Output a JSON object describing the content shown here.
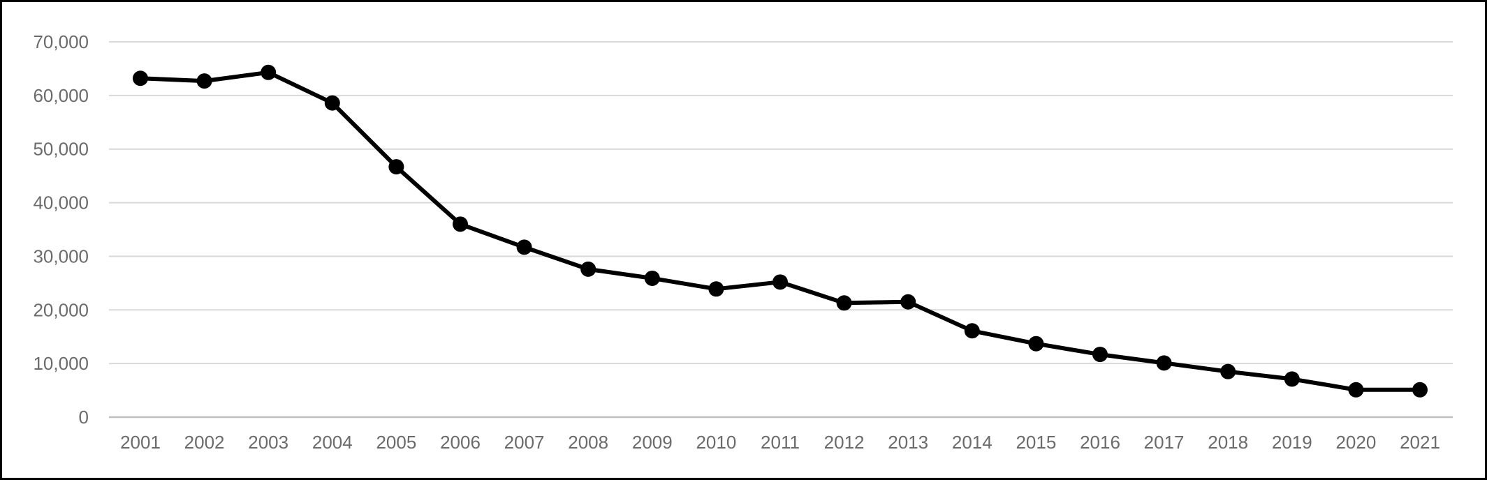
{
  "chart_data": {
    "type": "line",
    "title": "",
    "xlabel": "",
    "ylabel": "",
    "categories": [
      "2001",
      "2002",
      "2003",
      "2004",
      "2005",
      "2006",
      "2007",
      "2008",
      "2009",
      "2010",
      "2011",
      "2012",
      "2013",
      "2014",
      "2015",
      "2016",
      "2017",
      "2018",
      "2019",
      "2020",
      "2021"
    ],
    "series": [
      {
        "values": [
          63200,
          62700,
          64300,
          58600,
          46700,
          36000,
          31700,
          27600,
          25900,
          23900,
          25200,
          21300,
          21500,
          16100,
          13700,
          11700,
          10100,
          8500,
          7100,
          5100,
          5100
        ]
      }
    ],
    "ylim": [
      0,
      70000
    ],
    "yticks": [
      0,
      10000,
      20000,
      30000,
      40000,
      50000,
      60000,
      70000
    ],
    "ytick_labels": [
      "0",
      "10,000",
      "20,000",
      "30,000",
      "40,000",
      "50,000",
      "60,000",
      "70,000"
    ],
    "grid": true,
    "legend": "none",
    "colors": {
      "line": "#000000",
      "marker": "#000000",
      "grid": "#d9d9d9",
      "axis": "#bfbfbf",
      "tick_text": "#6b6b6b",
      "border": "#000000"
    }
  }
}
